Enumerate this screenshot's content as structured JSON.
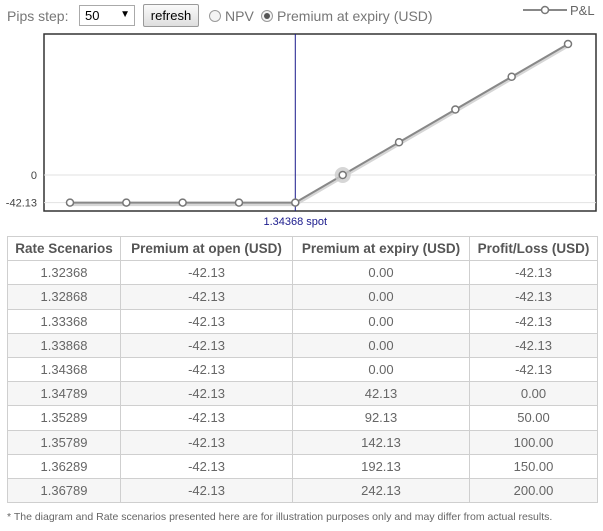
{
  "toolbar": {
    "pips_label": "Pips step:",
    "pips_value": "50",
    "refresh_label": "refresh",
    "npv_label": "NPV",
    "premium_label": "Premium at expiry (USD)",
    "selected_mode": "premium"
  },
  "legend": {
    "label": "P&L"
  },
  "chart_data": {
    "type": "line",
    "x": [
      1.32368,
      1.32868,
      1.33368,
      1.33868,
      1.34368,
      1.34789,
      1.35289,
      1.35789,
      1.36289,
      1.36789
    ],
    "series": [
      {
        "name": "P&L",
        "values": [
          -42.13,
          -42.13,
          -42.13,
          -42.13,
          -42.13,
          0.0,
          50.0,
          100.0,
          150.0,
          200.0
        ]
      }
    ],
    "y_tick_labels": [
      "0",
      "-42.13"
    ],
    "spot_label": "1.34368 spot",
    "spot_x": 1.34368,
    "highlight_x": 1.34789,
    "grid": true,
    "line_color": "#888888",
    "spot_line_color": "#1a1a8c"
  },
  "table": {
    "headers": [
      "Rate Scenarios",
      "Premium at open (USD)",
      "Premium at expiry (USD)",
      "Profit/Loss (USD)"
    ],
    "rows": [
      [
        "1.32368",
        "-42.13",
        "0.00",
        "-42.13"
      ],
      [
        "1.32868",
        "-42.13",
        "0.00",
        "-42.13"
      ],
      [
        "1.33368",
        "-42.13",
        "0.00",
        "-42.13"
      ],
      [
        "1.33868",
        "-42.13",
        "0.00",
        "-42.13"
      ],
      [
        "1.34368",
        "-42.13",
        "0.00",
        "-42.13"
      ],
      [
        "1.34789",
        "-42.13",
        "42.13",
        "0.00"
      ],
      [
        "1.35289",
        "-42.13",
        "92.13",
        "50.00"
      ],
      [
        "1.35789",
        "-42.13",
        "142.13",
        "100.00"
      ],
      [
        "1.36289",
        "-42.13",
        "192.13",
        "150.00"
      ],
      [
        "1.36789",
        "-42.13",
        "242.13",
        "200.00"
      ]
    ]
  },
  "footnote": "* The diagram and Rate scenarios presented here are for illustration purposes only and may differ from actual results."
}
